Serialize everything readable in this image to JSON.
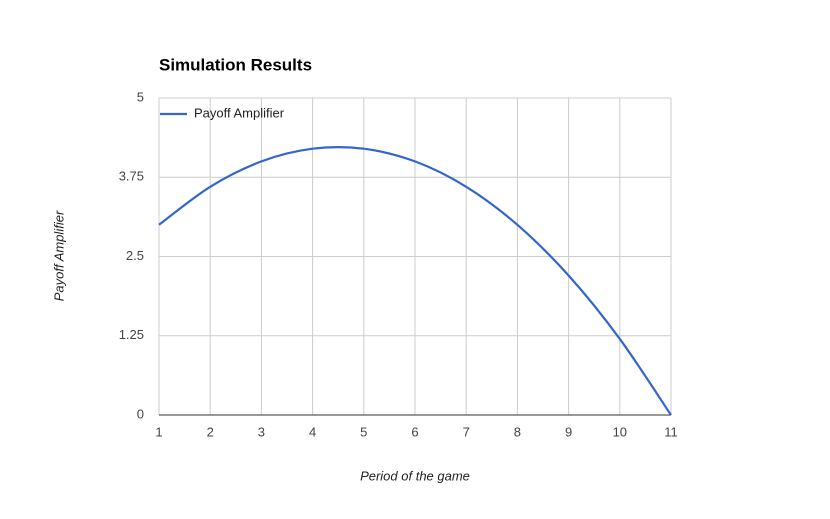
{
  "chart_data": {
    "type": "line",
    "title": "Simulation Results",
    "x_label": "Period of the game",
    "y_label": "Payoff Amplifier",
    "x": [
      1,
      2,
      3,
      4,
      5,
      6,
      7,
      8,
      9,
      10,
      11
    ],
    "series": [
      {
        "name": "Payoff Amplifier",
        "color": "#3366cc",
        "values": [
          3,
          3.6,
          4.0,
          4.2,
          4.2,
          4.0,
          3.6,
          3.0,
          2.2,
          1.2,
          0
        ]
      }
    ],
    "xlim": [
      1,
      11
    ],
    "xticks": [
      1,
      2,
      3,
      4,
      5,
      6,
      7,
      8,
      9,
      10,
      11
    ],
    "ylim": [
      0,
      5
    ],
    "yticks": [
      0,
      1.25,
      2.5,
      3.75,
      5
    ],
    "grid": true,
    "legend": "top-left",
    "smooth": true
  }
}
